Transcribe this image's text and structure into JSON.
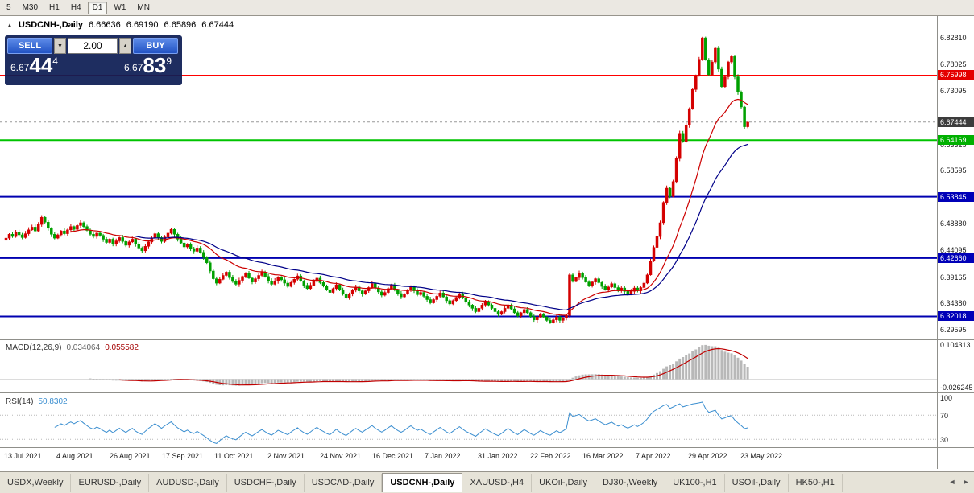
{
  "toolbar": {
    "timeframes": [
      "5",
      "M30",
      "H1",
      "H4",
      "D1",
      "W1",
      "MN"
    ],
    "active": "D1"
  },
  "chart_header": {
    "collapse_icon": "▲",
    "symbol": "USDCNH-,Daily",
    "open": "6.66636",
    "high": "6.69190",
    "low": "6.65896",
    "close": "6.67444"
  },
  "trade_panel": {
    "sell_label": "SELL",
    "buy_label": "BUY",
    "volume": "2.00",
    "icons": {
      "down": "▼",
      "up": "▲"
    },
    "sell_price": {
      "big_figure": "6.67",
      "pips": "44",
      "pip_fraction": "4"
    },
    "buy_price": {
      "big_figure": "6.67",
      "pips": "83",
      "pip_fraction": "9"
    }
  },
  "chart_data": {
    "type": "candlestick",
    "title": "USDCNH-,Daily",
    "ohlc_current": {
      "open": 6.66636,
      "high": 6.6919,
      "low": 6.65896,
      "close": 6.67444
    },
    "up_color": "#d40000",
    "down_color": "#00a000",
    "price_axis": {
      "ticks": [
        "6.82810",
        "6.78025",
        "6.73095",
        "6.63325",
        "6.58595",
        "6.48880",
        "6.44095",
        "6.39165",
        "6.34380",
        "6.29595"
      ],
      "badges": [
        {
          "text": "6.75998",
          "color": "#e40000"
        },
        {
          "text": "6.67444",
          "color": "#3c3c3c"
        },
        {
          "text": "6.64169",
          "color": "#00b000"
        },
        {
          "text": "6.53845",
          "color": "#0000b8"
        },
        {
          "text": "6.42660",
          "color": "#0000b8"
        },
        {
          "text": "6.32018",
          "color": "#0000b8"
        }
      ]
    },
    "horizontal_lines": [
      {
        "price": 6.75998,
        "color": "#ff0000",
        "width": 1
      },
      {
        "price": 6.64169,
        "color": "#00c400",
        "width": 2
      },
      {
        "price": 6.53845,
        "color": "#0000b0",
        "width": 2
      },
      {
        "price": 6.4266,
        "color": "#0000b0",
        "width": 2
      },
      {
        "price": 6.32018,
        "color": "#0000b0",
        "width": 2
      }
    ],
    "moving_averages": [
      {
        "period": 20,
        "color": "#cc0000"
      },
      {
        "period": 40,
        "color": "#000088"
      }
    ],
    "closes": [
      6.463,
      6.47,
      6.466,
      6.474,
      6.469,
      6.464,
      6.471,
      6.478,
      6.483,
      6.476,
      6.488,
      6.501,
      6.492,
      6.481,
      6.47,
      6.463,
      6.469,
      6.476,
      6.471,
      6.478,
      6.484,
      6.479,
      6.486,
      6.491,
      6.484,
      6.477,
      6.47,
      6.466,
      6.472,
      6.468,
      6.461,
      6.455,
      6.461,
      6.452,
      6.458,
      6.464,
      6.457,
      6.45,
      6.456,
      6.461,
      6.452,
      6.445,
      6.44,
      6.448,
      6.456,
      6.463,
      6.471,
      6.464,
      6.457,
      6.465,
      6.472,
      6.479,
      6.47,
      6.461,
      6.454,
      6.447,
      6.452,
      6.444,
      6.439,
      6.445,
      6.437,
      6.428,
      6.418,
      6.403,
      6.389,
      6.381,
      6.388,
      6.395,
      6.401,
      6.391,
      6.384,
      6.379,
      6.386,
      6.393,
      6.399,
      6.39,
      6.383,
      6.389,
      6.395,
      6.401,
      6.393,
      6.385,
      6.379,
      6.385,
      6.392,
      6.387,
      6.381,
      6.375,
      6.382,
      6.388,
      6.394,
      6.385,
      6.377,
      6.371,
      6.377,
      6.384,
      6.39,
      6.382,
      6.376,
      6.369,
      6.364,
      6.371,
      6.378,
      6.369,
      6.361,
      6.355,
      6.361,
      6.368,
      6.374,
      6.367,
      6.361,
      6.367,
      6.373,
      6.38,
      6.372,
      6.365,
      6.359,
      6.364,
      6.371,
      6.377,
      6.369,
      6.362,
      6.356,
      6.361,
      6.368,
      6.374,
      6.367,
      6.36,
      6.364,
      6.357,
      6.351,
      6.345,
      6.351,
      6.357,
      6.363,
      6.356,
      6.349,
      6.343,
      6.349,
      6.355,
      6.361,
      6.354,
      6.347,
      6.341,
      6.335,
      6.329,
      6.335,
      6.341,
      6.347,
      6.341,
      6.335,
      6.329,
      6.324,
      6.329,
      6.335,
      6.341,
      6.334,
      6.327,
      6.321,
      6.327,
      6.333,
      6.327,
      6.32,
      6.314,
      6.319,
      6.325,
      6.319,
      6.313,
      6.309,
      6.314,
      6.319,
      6.313,
      6.317,
      6.322,
      6.396,
      6.384,
      6.391,
      6.399,
      6.391,
      6.383,
      6.377,
      6.383,
      6.389,
      6.382,
      6.375,
      6.369,
      6.374,
      6.38,
      6.373,
      6.367,
      6.372,
      6.366,
      6.361,
      6.366,
      6.372,
      6.367,
      6.373,
      6.381,
      6.396,
      6.421,
      6.446,
      6.466,
      6.491,
      6.528,
      6.554,
      6.539,
      6.566,
      6.608,
      6.654,
      6.639,
      6.669,
      6.699,
      6.734,
      6.759,
      6.789,
      6.828,
      6.788,
      6.761,
      6.784,
      6.809,
      6.771,
      6.739,
      6.757,
      6.784,
      6.794,
      6.757,
      6.729,
      6.702,
      6.666,
      6.6744
    ],
    "x_axis": {
      "tick_labels": [
        "13 Jul 2021",
        "4 Aug 2021",
        "26 Aug 2021",
        "17 Sep 2021",
        "11 Oct 2021",
        "2 Nov 2021",
        "24 Nov 2021",
        "16 Dec 2021",
        "7 Jan 2022",
        "31 Jan 2022",
        "22 Feb 2022",
        "16 Mar 2022",
        "7 Apr 2022",
        "29 Apr 2022",
        "23 May 2022"
      ]
    },
    "indicators": {
      "macd": {
        "label": "MACD(12,26,9)",
        "value_main": "0.034064",
        "value_signal": "0.055582",
        "fast": 12,
        "slow": 26,
        "signal": 9,
        "axis_labels": [
          {
            "text": "0.104313",
            "value": 0.104313
          },
          {
            "text": "-0.026245",
            "value": -0.026245
          }
        ],
        "histogram_color": "#b8b8b8",
        "signal_color": "#c00000"
      },
      "rsi": {
        "label": "RSI(14)",
        "value": "50.8302",
        "period": 14,
        "levels": [
          {
            "text": "100",
            "value": 100
          },
          {
            "text": "70",
            "value": 70
          },
          {
            "text": "30",
            "value": 30
          }
        ],
        "line_color": "#3c8fd0",
        "level_line_color": "#b8b8b8"
      }
    }
  },
  "tabs": {
    "items": [
      "USDX,Weekly",
      "EURUSD-,Daily",
      "AUDUSD-,Daily",
      "USDCHF-,Daily",
      "USDCAD-,Daily",
      "USDCNH-,Daily",
      "XAUUSD-,H4",
      "UKOil-,Daily",
      "DJ30-,Weekly",
      "UK100-,H1",
      "USOil-,Daily",
      "HK50-,H1"
    ],
    "active": "USDCNH-,Daily",
    "scroll_left": "◄",
    "scroll_right": "►"
  }
}
